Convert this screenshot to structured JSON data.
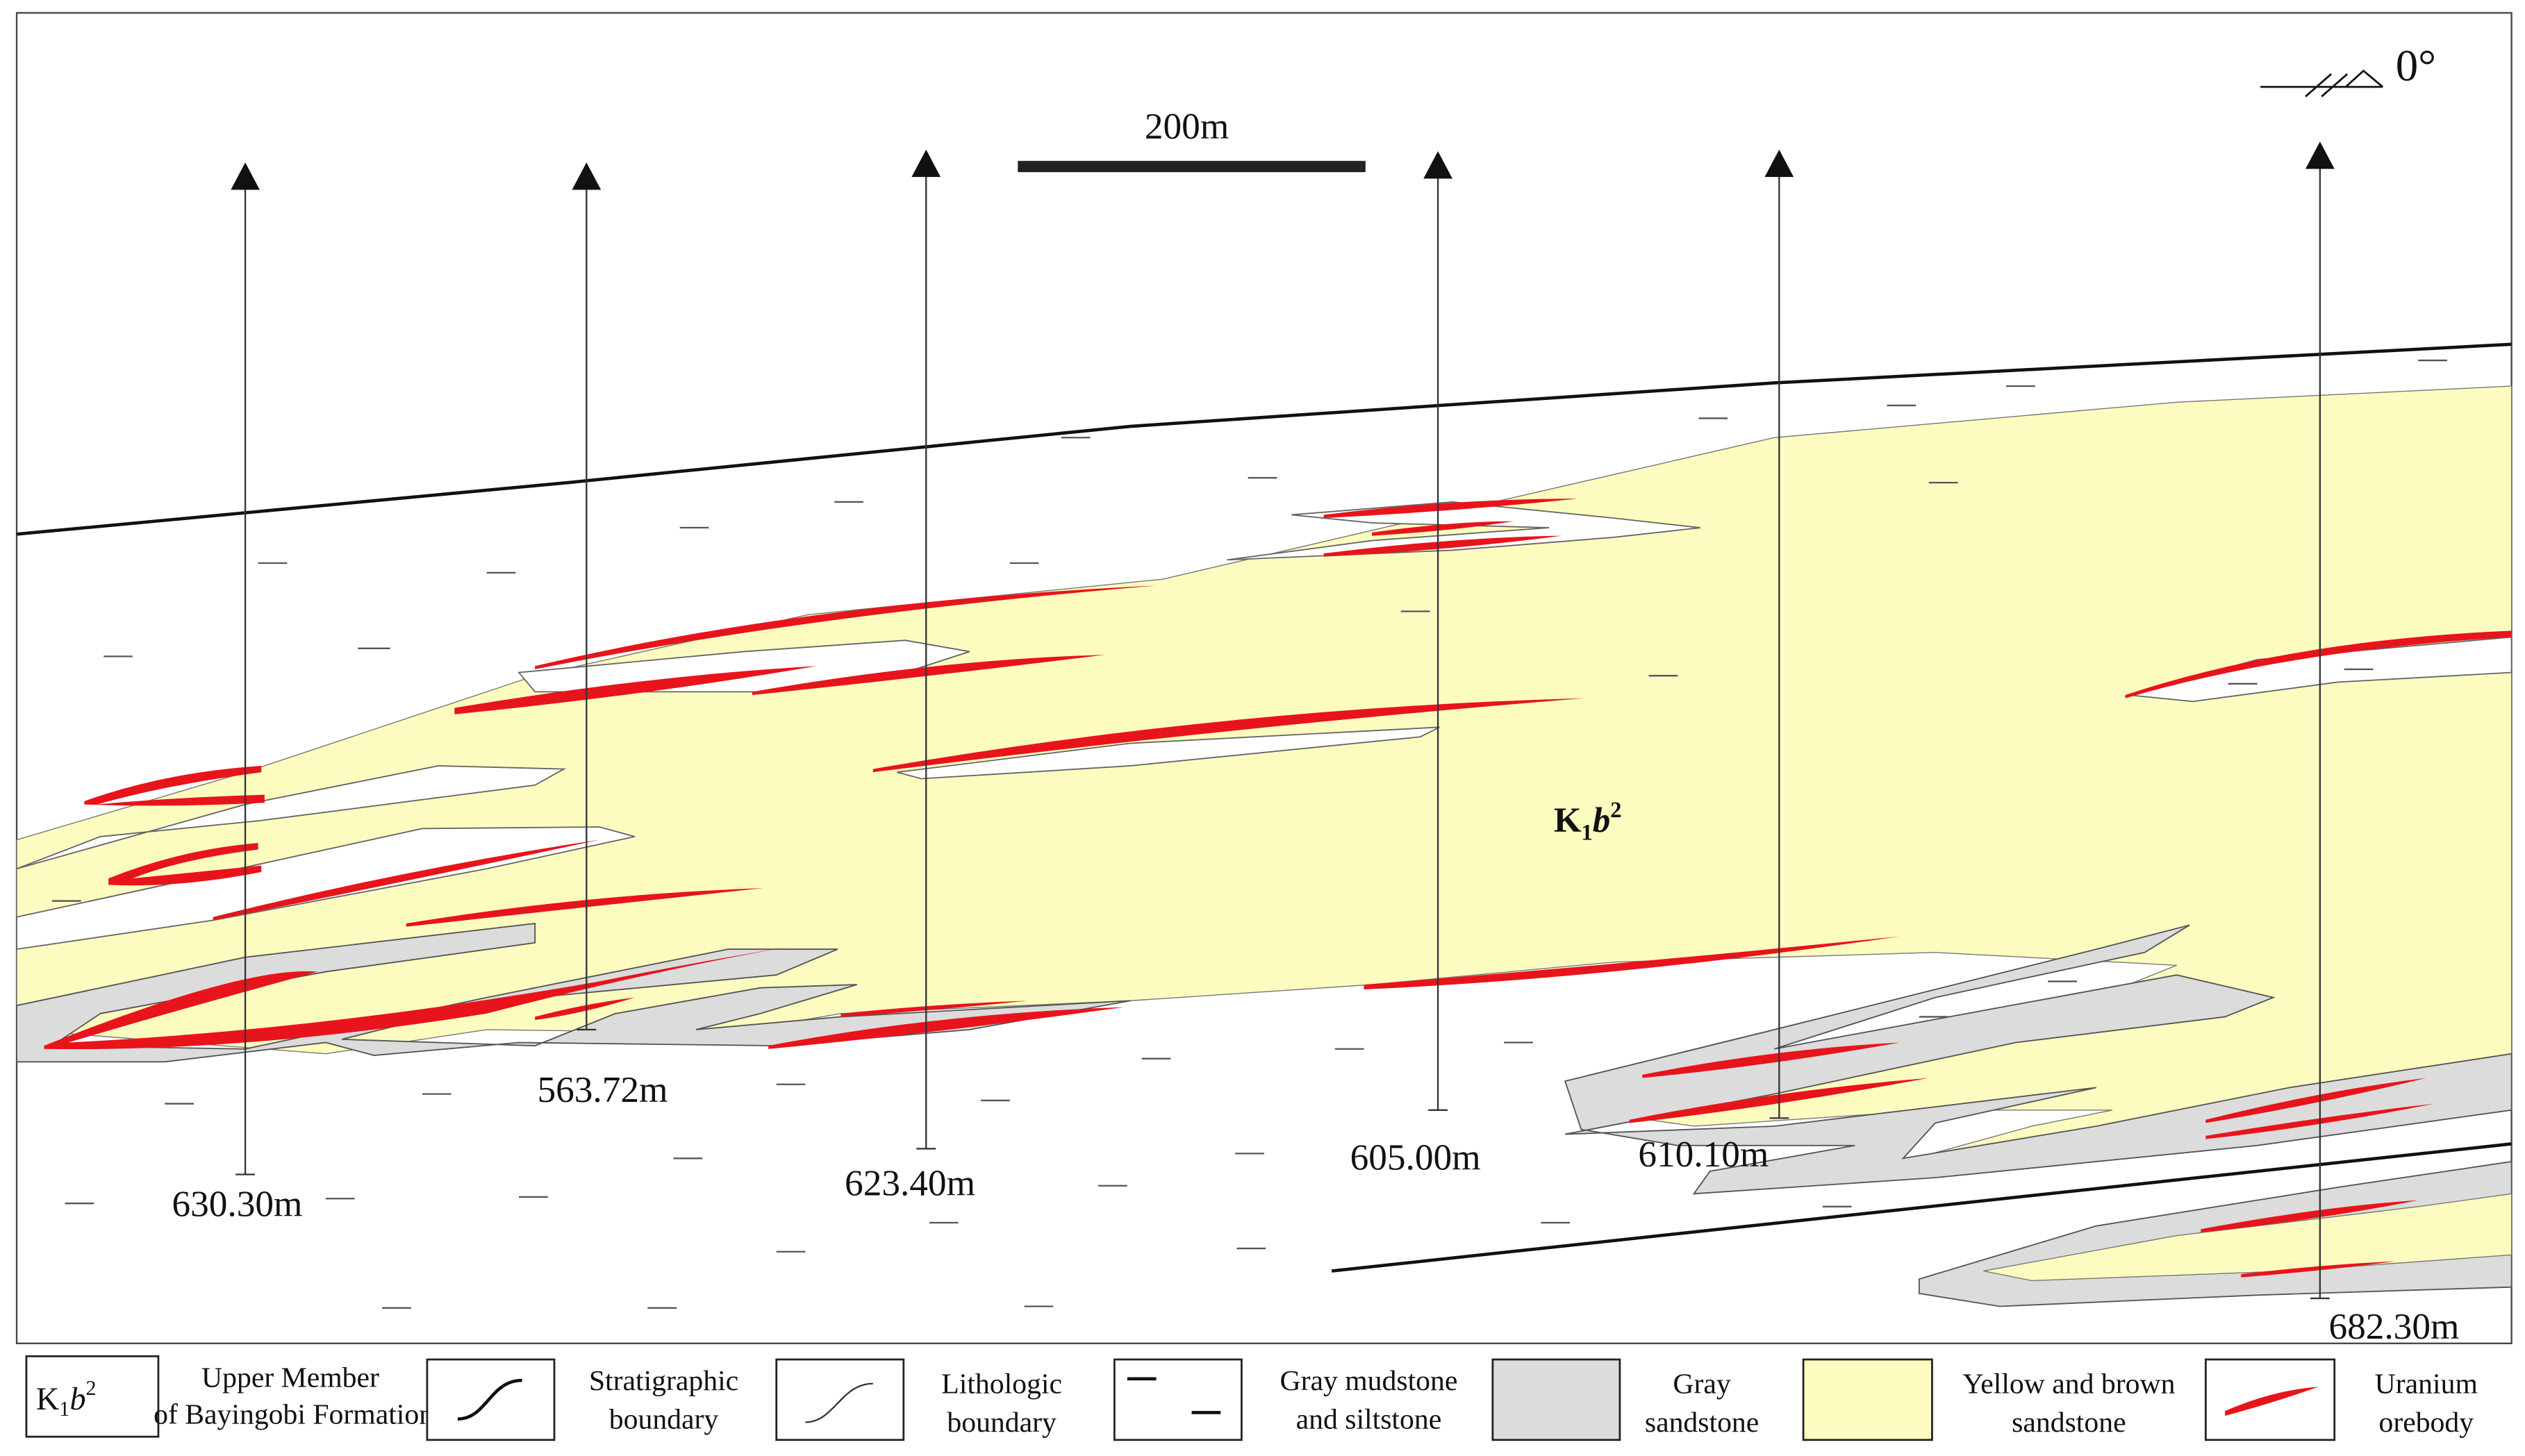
{
  "section": {
    "scale_bar": "200m",
    "dip": "0°",
    "formation": {
      "base": "K",
      "subscript": "1",
      "italic": "b",
      "superscript": "2"
    },
    "boreholes": [
      {
        "depth": "630.30m"
      },
      {
        "depth": "563.72m"
      },
      {
        "depth": "623.40m"
      },
      {
        "depth": "605.00m"
      },
      {
        "depth": "610.10m"
      },
      {
        "depth": "682.30m"
      }
    ]
  },
  "legend": {
    "symbol": {
      "base": "K",
      "subscript": "1",
      "italic": "b",
      "superscript": "2"
    },
    "items": [
      {
        "lines": [
          "Upper Member",
          "of Bayingobi Formation"
        ]
      },
      {
        "lines": [
          "Stratigraphic",
          "boundary"
        ]
      },
      {
        "lines": [
          "Lithologic",
          "boundary"
        ]
      },
      {
        "lines": [
          "Gray mudstone",
          "and siltstone"
        ]
      },
      {
        "lines": [
          "Gray",
          "sandstone"
        ]
      },
      {
        "lines": [
          "Yellow and brown",
          "sandstone"
        ]
      },
      {
        "lines": [
          "Uranium",
          "orebody"
        ]
      }
    ]
  }
}
